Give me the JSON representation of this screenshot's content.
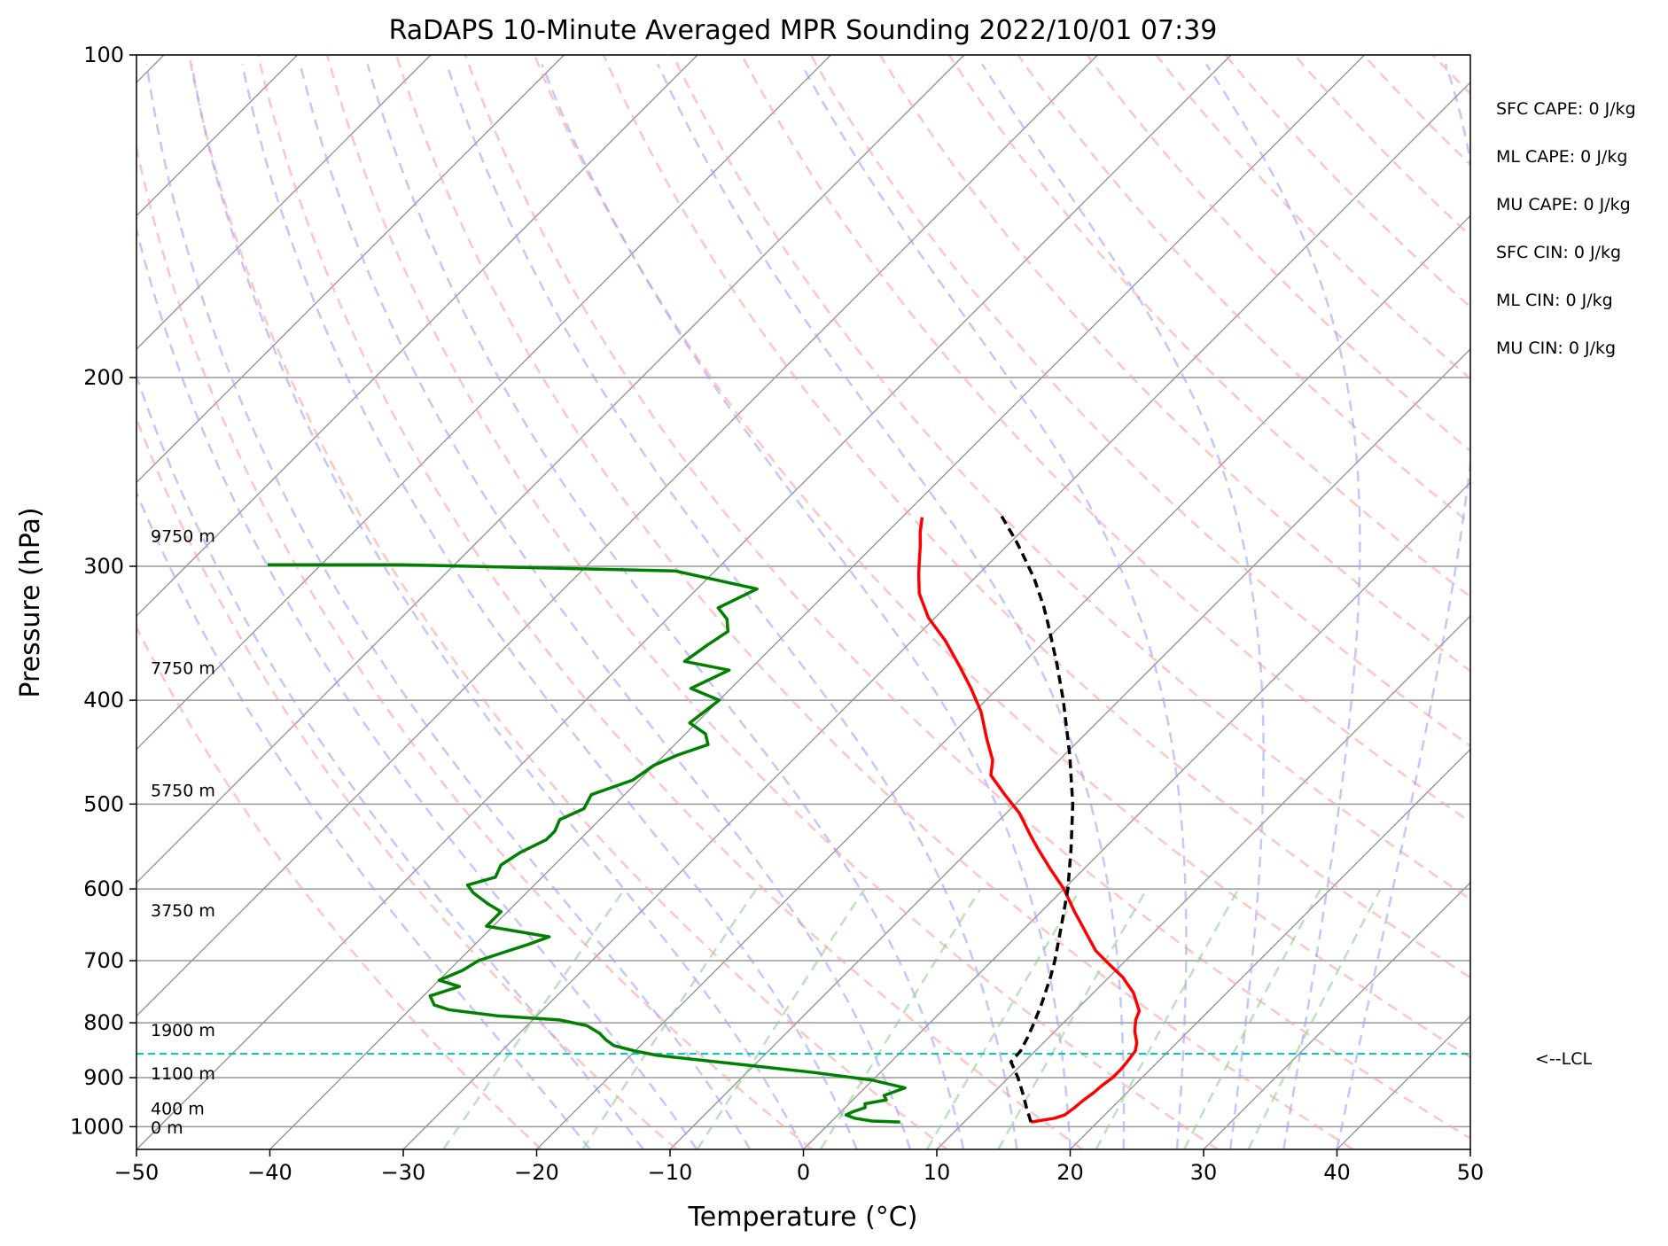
{
  "chart_data": {
    "type": "line",
    "title": "RaDAPS 10-Minute Averaged MPR Sounding 2022/10/01 07:39",
    "xlabel": "Temperature (°C)",
    "ylabel": "Pressure (hPa)",
    "xlim": [
      -50,
      50
    ],
    "ylim": [
      1050,
      100
    ],
    "yscale": "log",
    "x_ticks": [
      "−50",
      "−40",
      "−30",
      "−20",
      "−10",
      "0",
      "10",
      "20",
      "30",
      "40",
      "50"
    ],
    "y_ticks": [
      {
        "p": 100,
        "label": "100"
      },
      {
        "p": 200,
        "label": "200"
      },
      {
        "p": 300,
        "label": "300"
      },
      {
        "p": 400,
        "label": "400"
      },
      {
        "p": 500,
        "label": "500"
      },
      {
        "p": 600,
        "label": "600"
      },
      {
        "p": 700,
        "label": "700"
      },
      {
        "p": 800,
        "label": "800"
      },
      {
        "p": 900,
        "label": "900"
      },
      {
        "p": 1000,
        "label": "1000"
      }
    ],
    "grid": true,
    "skew": true,
    "series": [
      {
        "kind": "temperature",
        "color": "#ff0000",
        "points": [
          [
            15.0,
            990
          ],
          [
            16.5,
            982
          ],
          [
            17.0,
            975
          ],
          [
            17.2,
            960
          ],
          [
            17.3,
            945
          ],
          [
            17.5,
            930
          ],
          [
            17.6,
            915
          ],
          [
            17.8,
            900
          ],
          [
            17.8,
            885
          ],
          [
            17.7,
            870
          ],
          [
            17.5,
            850
          ],
          [
            17.0,
            835
          ],
          [
            16.0,
            815
          ],
          [
            15.2,
            795
          ],
          [
            14.8,
            780
          ],
          [
            13.0,
            750
          ],
          [
            11.0,
            725
          ],
          [
            9.0,
            705
          ],
          [
            7.0,
            685
          ],
          [
            5.0,
            660
          ],
          [
            2.5,
            630
          ],
          [
            0.0,
            600
          ],
          [
            -2.5,
            575
          ],
          [
            -5.0,
            550
          ],
          [
            -6.5,
            535
          ],
          [
            -9.0,
            510
          ],
          [
            -11.5,
            490
          ],
          [
            -14.0,
            470
          ],
          [
            -15.0,
            455
          ],
          [
            -17.0,
            435
          ],
          [
            -19.5,
            410
          ],
          [
            -22.0,
            390
          ],
          [
            -24.5,
            372
          ],
          [
            -27.5,
            352
          ],
          [
            -30.5,
            335
          ],
          [
            -33.0,
            318
          ],
          [
            -34.5,
            305
          ],
          [
            -35.5,
            296
          ],
          [
            -36.5,
            287
          ],
          [
            -37.5,
            279
          ],
          [
            -38.5,
            270
          ]
        ]
      },
      {
        "kind": "dewpoint",
        "color": "#008000",
        "points": [
          [
            5.2,
            990
          ],
          [
            3.0,
            988
          ],
          [
            1.5,
            982
          ],
          [
            0.6,
            975
          ],
          [
            0.9,
            968
          ],
          [
            1.5,
            960
          ],
          [
            1.2,
            952
          ],
          [
            2.5,
            944
          ],
          [
            2.0,
            935
          ],
          [
            3.0,
            920
          ],
          [
            0.0,
            905
          ],
          [
            -5.0,
            890
          ],
          [
            -11.0,
            875
          ],
          [
            -18.0,
            858
          ],
          [
            -20.0,
            850
          ],
          [
            -22.0,
            840
          ],
          [
            -23.0,
            830
          ],
          [
            -24.0,
            818
          ],
          [
            -25.5,
            805
          ],
          [
            -28.0,
            795
          ],
          [
            -33.0,
            788
          ],
          [
            -37.0,
            778
          ],
          [
            -38.5,
            770
          ],
          [
            -39.5,
            755
          ],
          [
            -38.0,
            740
          ],
          [
            -40.0,
            730
          ],
          [
            -39.0,
            715
          ],
          [
            -38.5,
            700
          ],
          [
            -37.5,
            690
          ],
          [
            -36.0,
            676
          ],
          [
            -35.0,
            665
          ],
          [
            -40.5,
            650
          ],
          [
            -40.5,
            630
          ],
          [
            -42.0,
            620
          ],
          [
            -44.0,
            605
          ],
          [
            -45.0,
            595
          ],
          [
            -43.5,
            585
          ],
          [
            -44.0,
            570
          ],
          [
            -43.5,
            555
          ],
          [
            -42.5,
            540
          ],
          [
            -42.5,
            530
          ],
          [
            -43.0,
            517
          ],
          [
            -42.0,
            505
          ],
          [
            -42.5,
            490
          ],
          [
            -40.5,
            475
          ],
          [
            -40.0,
            460
          ],
          [
            -39.0,
            450
          ],
          [
            -37.5,
            440
          ],
          [
            -38.5,
            430
          ],
          [
            -40.5,
            420
          ],
          [
            -40.0,
            400
          ],
          [
            -43.0,
            390
          ],
          [
            -41.5,
            375
          ],
          [
            -45.5,
            368
          ],
          [
            -45.0,
            355
          ],
          [
            -44.5,
            345
          ],
          [
            -45.5,
            336
          ],
          [
            -47.0,
            328
          ],
          [
            -45.5,
            315
          ],
          [
            -53.0,
            303
          ],
          [
            -74.0,
            299
          ],
          [
            -84.0,
            299
          ]
        ]
      },
      {
        "kind": "parcel",
        "color": "#000000",
        "points": [
          [
            15.0,
            990
          ],
          [
            13.6,
            960
          ],
          [
            12.2,
            930
          ],
          [
            10.7,
            900
          ],
          [
            9.0,
            870
          ],
          [
            8.9,
            850
          ],
          [
            8.4,
            825
          ],
          [
            7.8,
            800
          ],
          [
            7.0,
            770
          ],
          [
            5.6,
            725
          ],
          [
            4.7,
            700
          ],
          [
            2.6,
            650
          ],
          [
            0.3,
            600
          ],
          [
            -2.5,
            550
          ],
          [
            -5.7,
            500
          ],
          [
            -9.6,
            450
          ],
          [
            -14.2,
            400
          ],
          [
            -17.4,
            370
          ],
          [
            -21.0,
            340
          ],
          [
            -22.7,
            327
          ],
          [
            -25.5,
            308
          ],
          [
            -28.6,
            290
          ],
          [
            -29.7,
            284
          ],
          [
            -32.9,
            268
          ]
        ]
      }
    ],
    "lcl": {
      "p": 855,
      "label": "<--LCL"
    },
    "dry_adiabats_theta_K": [
      250,
      260,
      270,
      280,
      290,
      300,
      310,
      320,
      330,
      340,
      350,
      360,
      370,
      380,
      390,
      400,
      410,
      420,
      430,
      440,
      450,
      460,
      470
    ],
    "moist_adiabats_start_C": [
      -16,
      -12,
      -8,
      -4,
      0,
      4,
      8,
      12,
      16,
      20,
      24,
      28,
      32,
      36,
      40
    ],
    "mixing_ratio_lines_gkg": [
      0.4,
      1,
      2,
      4,
      7,
      10,
      16,
      24,
      32
    ],
    "height_labels": [
      {
        "p": 281,
        "label": "9750 m"
      },
      {
        "p": 373,
        "label": "7750 m"
      },
      {
        "p": 485,
        "label": "5750 m"
      },
      {
        "p": 628,
        "label": "3750 m"
      },
      {
        "p": 812,
        "label": "1900 m"
      },
      {
        "p": 891,
        "label": "1100 m"
      },
      {
        "p": 961,
        "label": "400 m"
      },
      {
        "p": 1001,
        "label": "0 m"
      }
    ],
    "stats": [
      "SFC CAPE: 0 J/kg",
      "ML CAPE: 0 J/kg",
      "MU CAPE: 0 J/kg",
      "SFC CIN: 0 J/kg",
      "ML CIN: 0 J/kg",
      "MU CIN: 0 J/kg"
    ],
    "colors": {
      "temperature": "#ff0000",
      "dewpoint": "#008000",
      "parcel": "#000000",
      "lcl": "#00bfbf",
      "dry_adiabat": "#ff9f9f",
      "moist_adiabat": "#9f9fff",
      "mixing_ratio": "#8fcf8f",
      "isotherm": "#999999"
    }
  }
}
